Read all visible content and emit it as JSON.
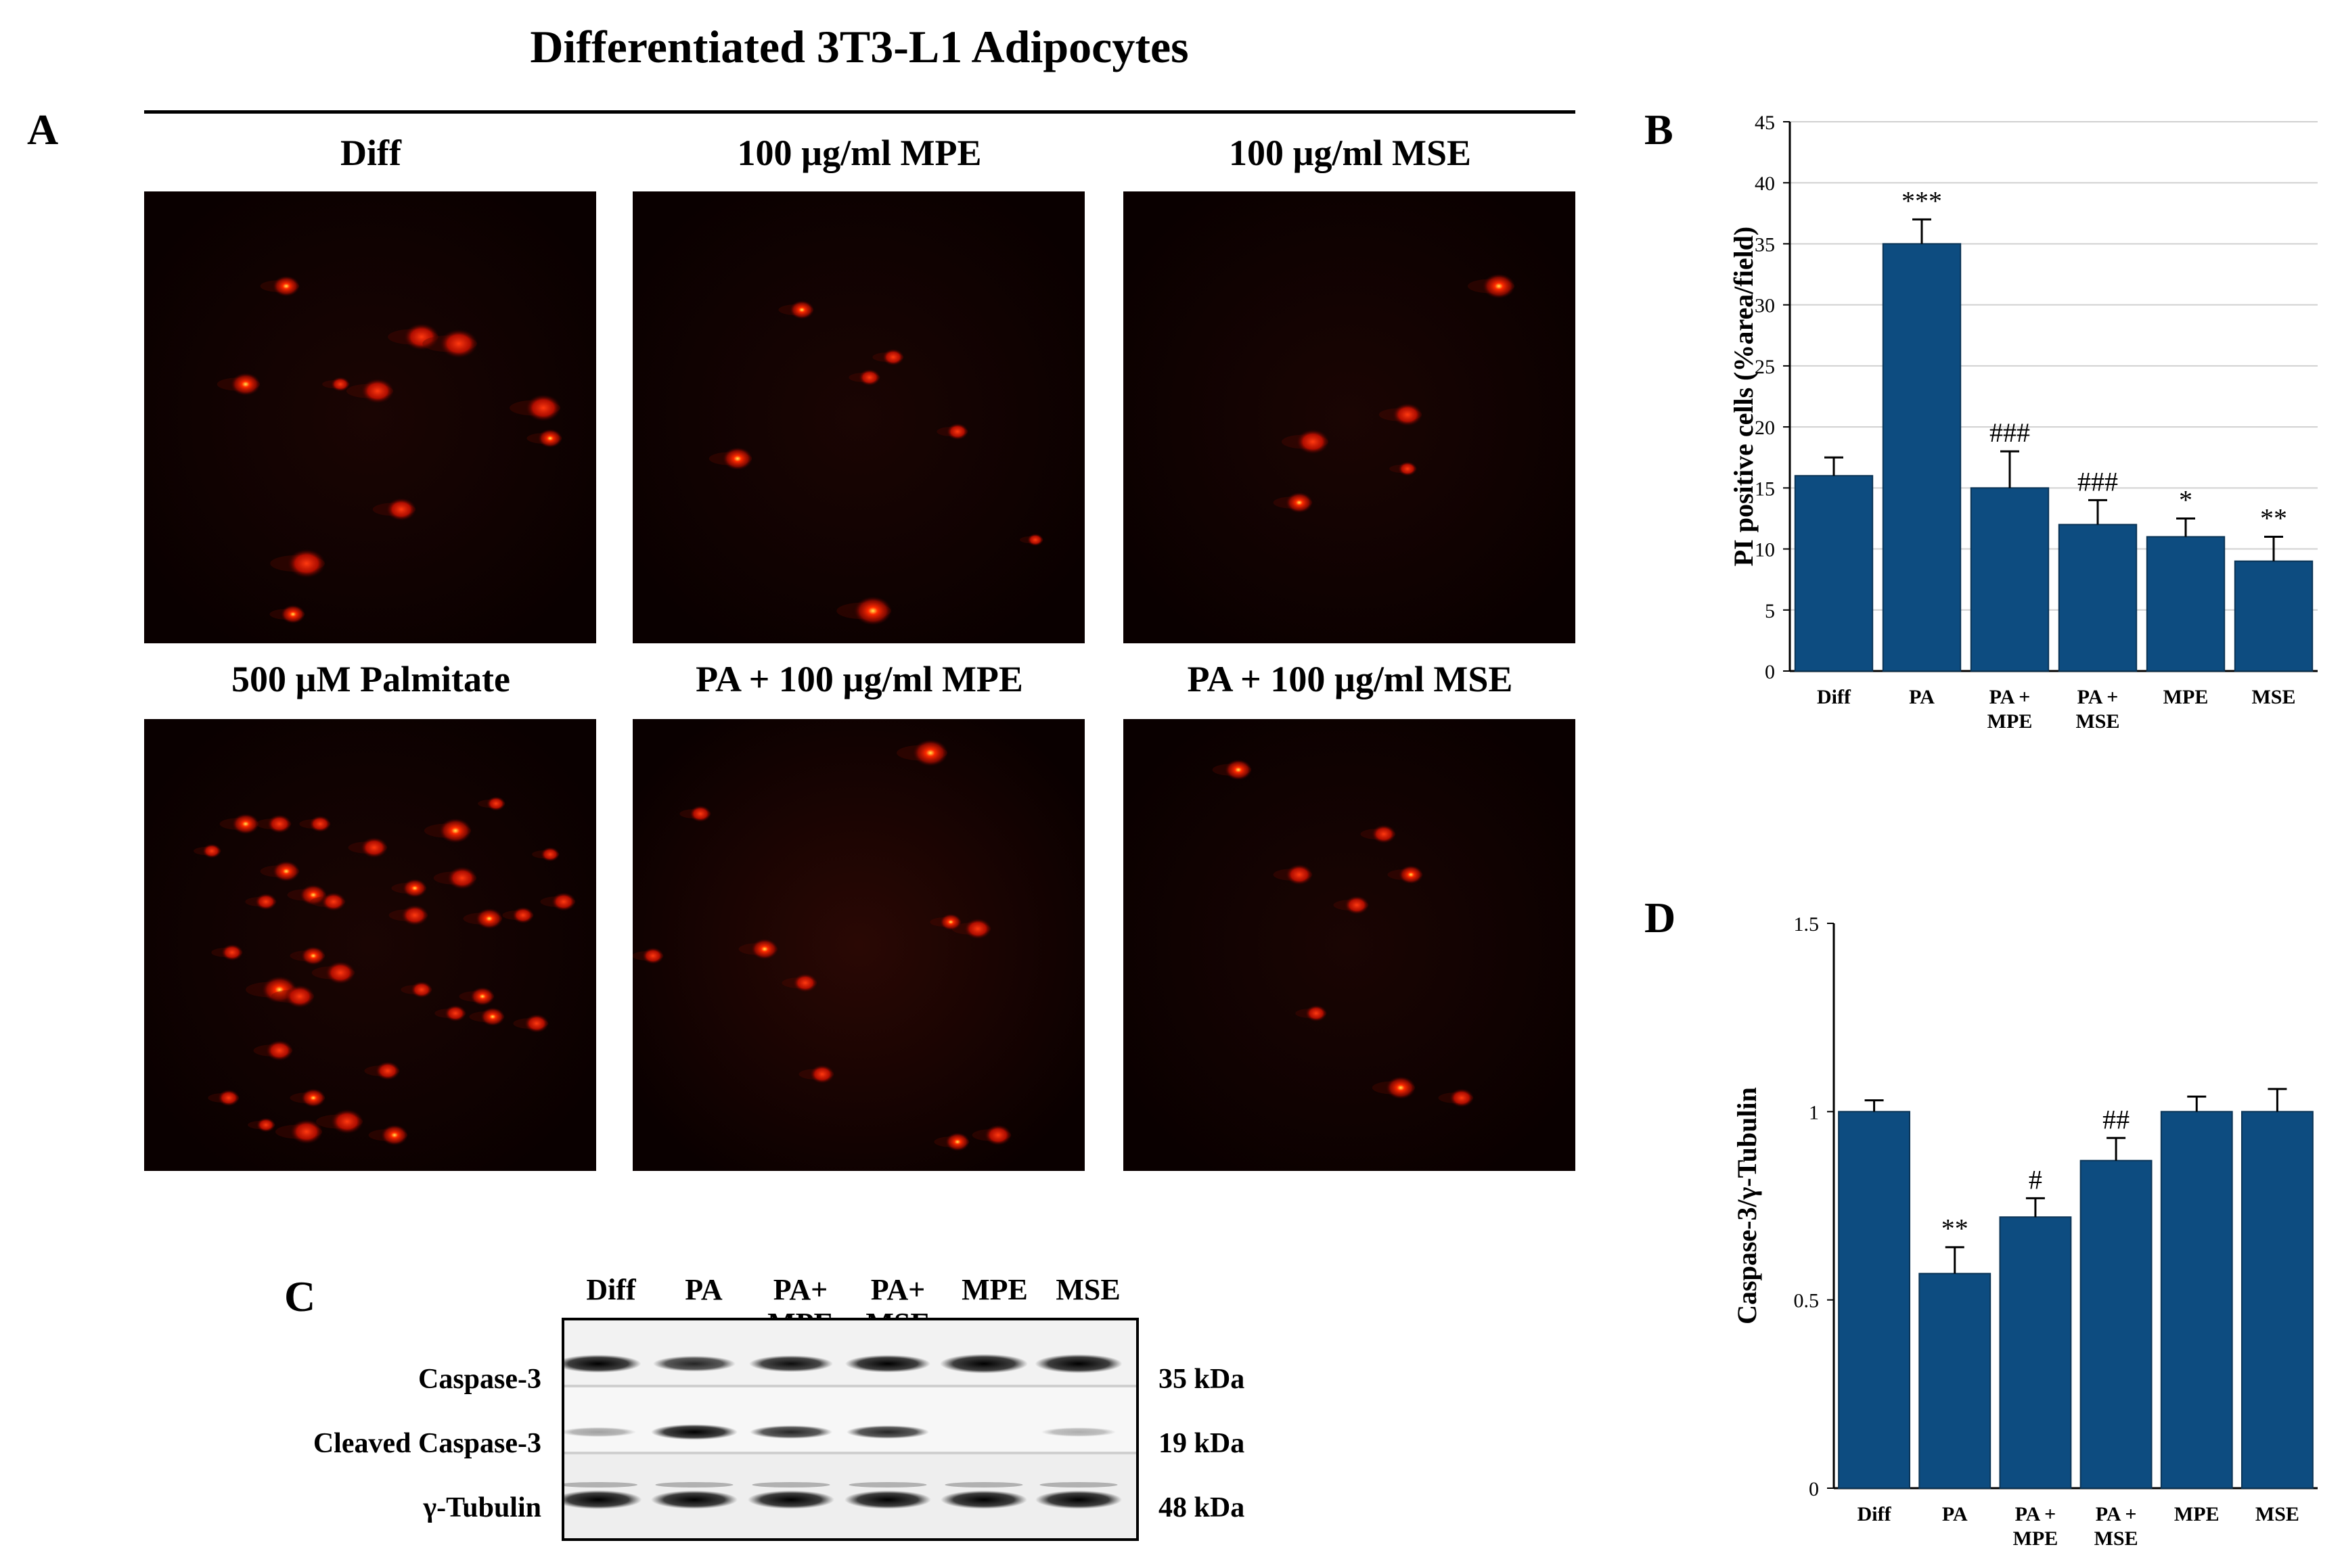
{
  "figure_title": "Differentiated 3T3-L1 Adipocytes",
  "panel_letters": {
    "a": "A",
    "b": "B",
    "c": "C",
    "d": "D"
  },
  "micrographs": [
    {
      "label": "Diff"
    },
    {
      "label": "100 µg/ml MPE"
    },
    {
      "label": "100 µg/ml MSE"
    },
    {
      "label": "500 µM Palmitate"
    },
    {
      "label": "PA + 100 µg/ml MPE"
    },
    {
      "label": "PA + 100 µg/ml MSE"
    }
  ],
  "western_blot": {
    "lanes": [
      "Diff",
      "PA",
      "PA+\nMPE",
      "PA+\nMSE",
      "MPE",
      "MSE"
    ],
    "rows": [
      {
        "label": "Caspase-3",
        "kda": "35 kDa",
        "intensity": [
          0.85,
          0.6,
          0.7,
          0.8,
          1.0,
          0.95
        ]
      },
      {
        "label": "Cleaved Caspase-3",
        "kda": "19 kDa",
        "intensity": [
          0.1,
          0.9,
          0.6,
          0.6,
          0.0,
          0.05
        ]
      },
      {
        "label": "γ-Tubulin",
        "kda": "48 kDa",
        "intensity": [
          0.95,
          0.9,
          0.9,
          0.9,
          0.9,
          0.9
        ]
      }
    ]
  },
  "colors": {
    "bar": "#0d4c80",
    "grid": "#d0d0d0",
    "micrograph_bg": "#0a0000",
    "spot": "#ff1a00"
  },
  "chart_data": [
    {
      "type": "bar",
      "panel": "B",
      "categories": [
        "Diff",
        "PA",
        "PA +\nMPE",
        "PA +\nMSE",
        "MPE",
        "MSE"
      ],
      "values": [
        16,
        35,
        15,
        12,
        11,
        9
      ],
      "errors": [
        1.5,
        2,
        3,
        2,
        1.5,
        2
      ],
      "annotations": [
        "",
        "***",
        "###",
        "###",
        "*",
        "**"
      ],
      "ylabel": "PI positive cells (%area/field)",
      "ylim": [
        0,
        45
      ],
      "yticks": [
        0,
        5,
        10,
        15,
        20,
        25,
        30,
        35,
        40,
        45
      ],
      "grid": true
    },
    {
      "type": "bar",
      "panel": "D",
      "categories": [
        "Diff",
        "PA",
        "PA +\nMPE",
        "PA +\nMSE",
        "MPE",
        "MSE"
      ],
      "values": [
        1.0,
        0.57,
        0.72,
        0.87,
        1.0,
        1.0
      ],
      "errors": [
        0.03,
        0.07,
        0.05,
        0.06,
        0.04,
        0.06
      ],
      "annotations": [
        "",
        "**",
        "#",
        "##",
        "",
        ""
      ],
      "ylabel": "Caspase-3/γ-Tubulin",
      "ylim": [
        0,
        1.5
      ],
      "yticks": [
        "0",
        "0.5",
        "1",
        "1.5"
      ],
      "grid": false
    }
  ]
}
